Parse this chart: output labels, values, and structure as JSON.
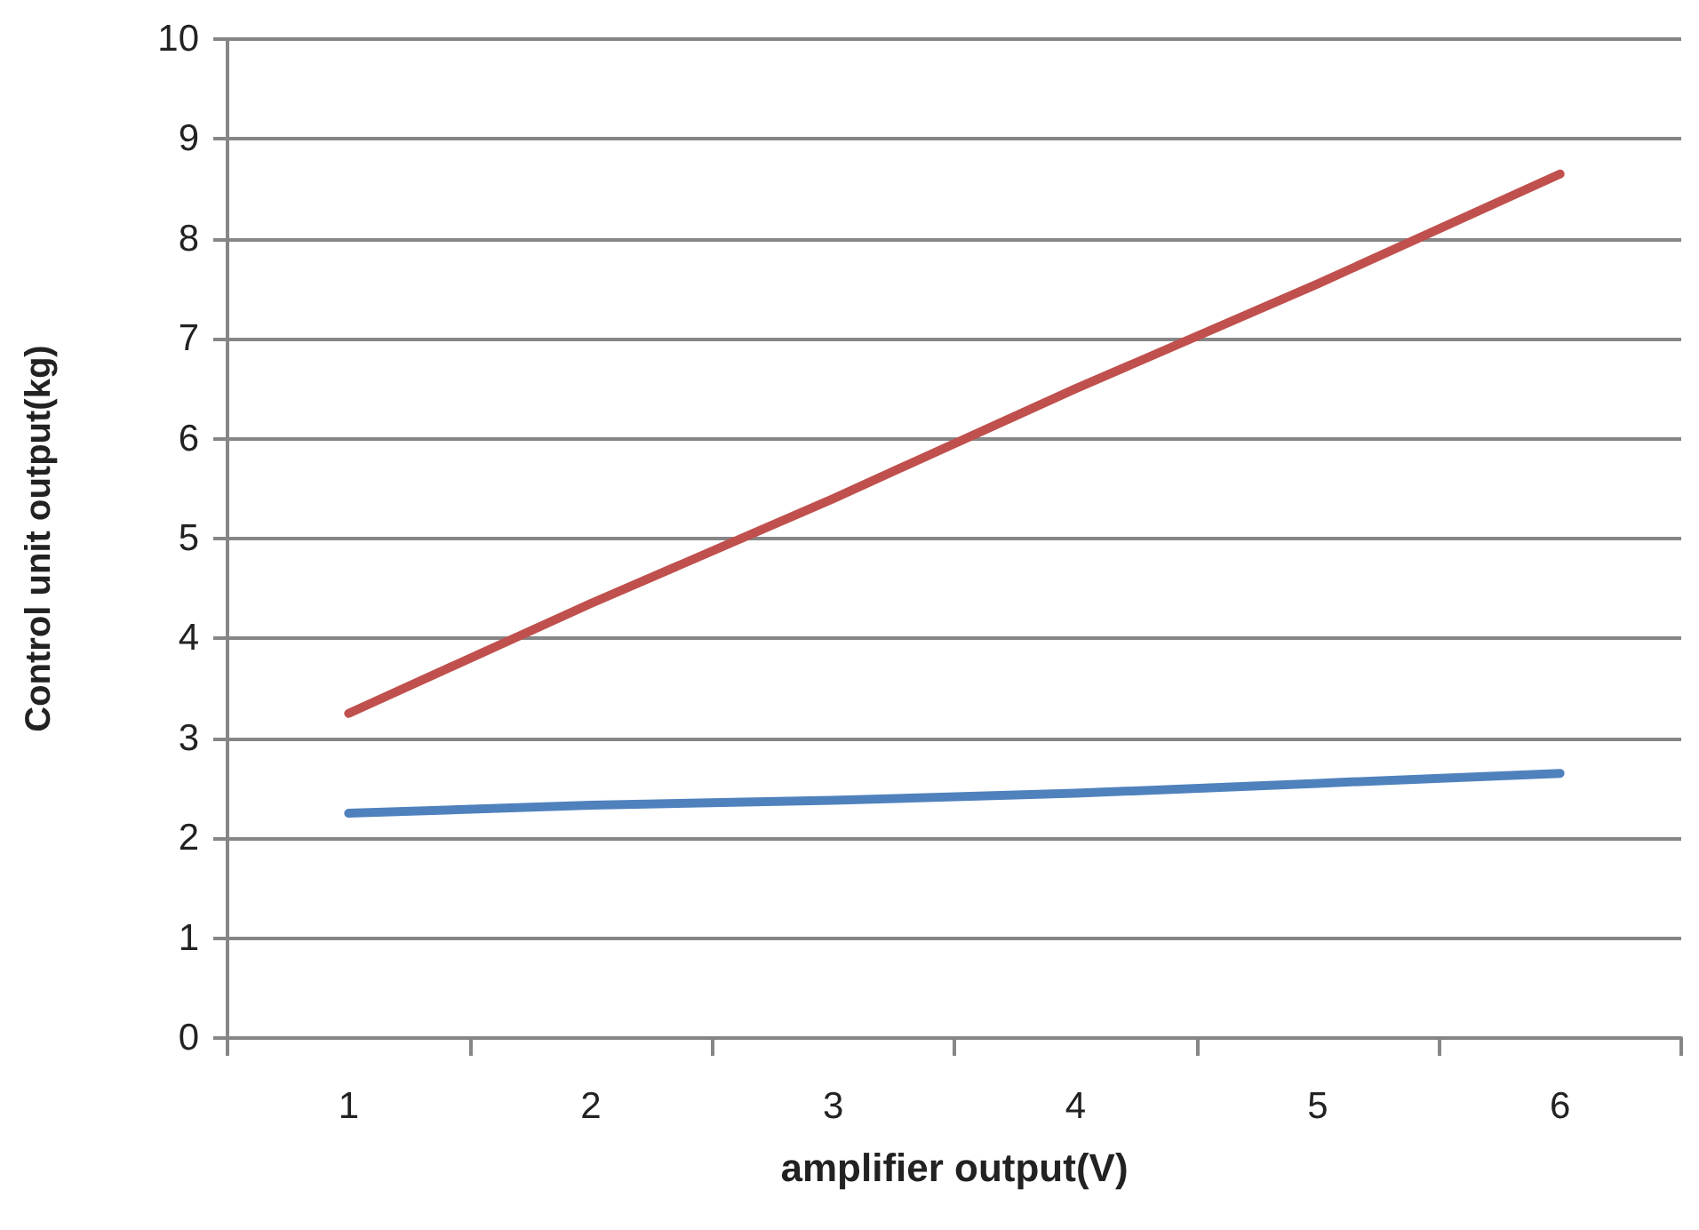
{
  "chart_data": {
    "type": "line",
    "xlabel": "amplifier output(V)",
    "ylabel": "Control unit output(kg)",
    "categories": [
      "1",
      "2",
      "3",
      "4",
      "5",
      "6"
    ],
    "series": [
      {
        "color": "#c0504d",
        "values": [
          3.25,
          4.35,
          5.4,
          6.5,
          7.55,
          8.65
        ]
      },
      {
        "color": "#4f81bd",
        "values": [
          2.25,
          2.33,
          2.38,
          2.45,
          2.55,
          2.65
        ]
      }
    ],
    "ylim": [
      0,
      10
    ],
    "yticks": [
      0,
      1,
      2,
      3,
      4,
      5,
      6,
      7,
      8,
      9,
      10
    ],
    "grid": "y",
    "marker": "none",
    "line_style": "solid"
  }
}
